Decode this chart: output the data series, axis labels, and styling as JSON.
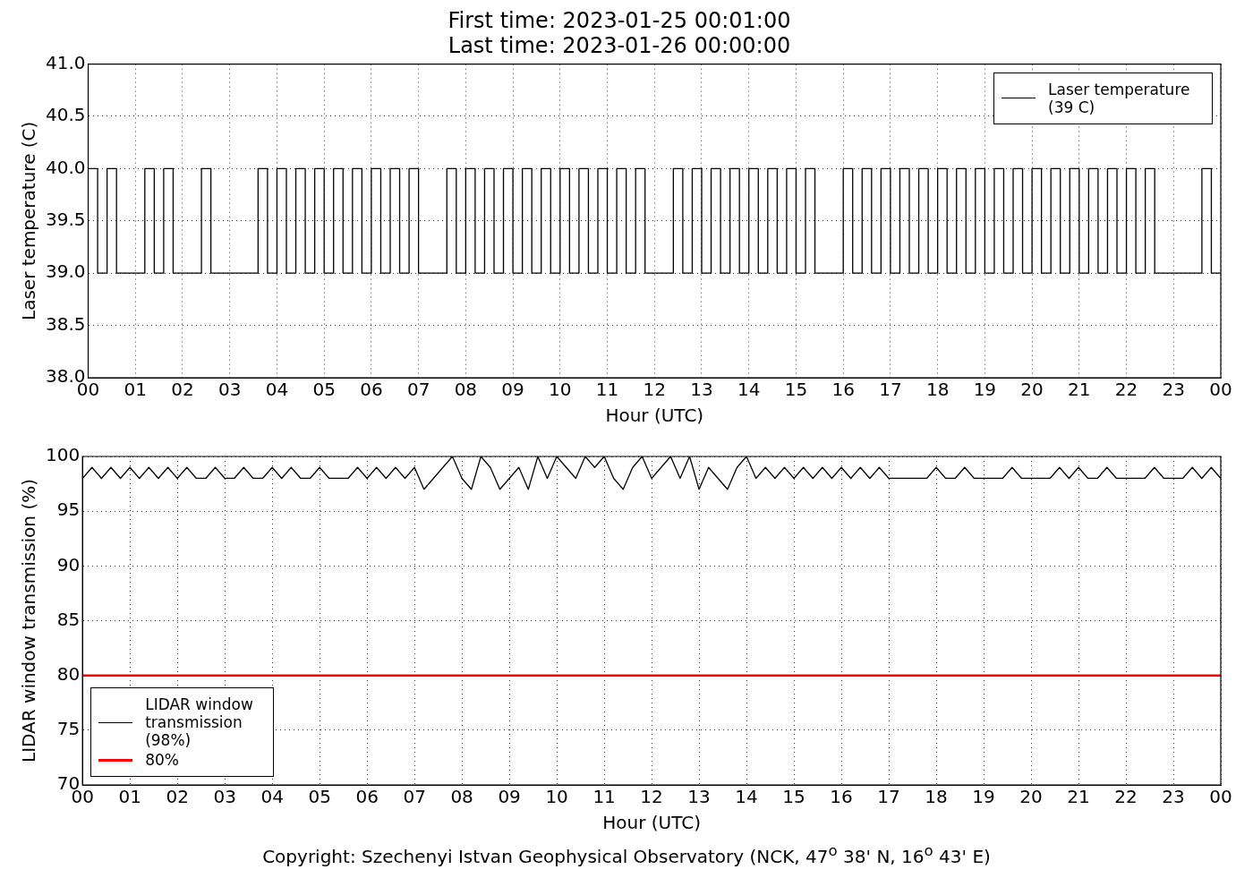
{
  "chart_data": [
    {
      "type": "step",
      "title": "First time: 2023-01-25 00:01:00",
      "subtitle": "Last time: 2023-01-26 00:00:00",
      "xlabel": "Hour (UTC)",
      "ylabel": "Laser temperature (C)",
      "x": [
        0,
        0.2,
        0.4,
        0.6,
        0.8,
        1,
        1.2,
        1.4,
        1.6,
        1.8,
        2,
        2.2,
        2.4,
        2.6,
        2.8,
        3,
        3.2,
        3.4,
        3.6,
        3.8,
        4,
        4.2,
        4.4,
        4.6,
        4.8,
        5,
        5.2,
        5.4,
        5.6,
        5.8,
        6,
        6.2,
        6.4,
        6.6,
        6.8,
        7,
        7.2,
        7.4,
        7.6,
        7.8,
        8,
        8.2,
        8.4,
        8.6,
        8.8,
        9,
        9.2,
        9.4,
        9.6,
        9.8,
        10,
        10.2,
        10.4,
        10.6,
        10.8,
        11,
        11.2,
        11.4,
        11.6,
        11.8,
        12,
        12.2,
        12.4,
        12.6,
        12.8,
        13,
        13.2,
        13.4,
        13.6,
        13.8,
        14,
        14.2,
        14.4,
        14.6,
        14.8,
        15,
        15.2,
        15.4,
        15.6,
        15.8,
        16,
        16.2,
        16.4,
        16.6,
        16.8,
        17,
        17.2,
        17.4,
        17.6,
        17.8,
        18,
        18.2,
        18.4,
        18.6,
        18.8,
        19,
        19.2,
        19.4,
        19.6,
        19.8,
        20,
        20.2,
        20.4,
        20.6,
        20.8,
        21,
        21.2,
        21.4,
        21.6,
        21.8,
        22,
        22.2,
        22.4,
        22.6,
        22.8,
        23,
        23.2,
        23.4,
        23.6,
        23.8,
        24
      ],
      "series": [
        {
          "name": "Laser temperature (39 C)",
          "color": "#000000",
          "values": [
            40,
            39,
            40,
            39,
            39,
            39,
            40,
            39,
            40,
            39,
            39,
            39,
            40,
            39,
            39,
            39,
            39,
            39,
            40,
            39,
            40,
            39,
            40,
            39,
            40,
            39,
            40,
            39,
            40,
            39,
            40,
            39,
            40,
            39,
            40,
            39,
            39,
            39,
            40,
            39,
            40,
            39,
            40,
            39,
            40,
            39,
            40,
            39,
            40,
            39,
            40,
            39,
            40,
            39,
            40,
            39,
            40,
            39,
            40,
            39,
            39,
            39,
            40,
            39,
            40,
            39,
            40,
            39,
            40,
            39,
            40,
            39,
            40,
            39,
            40,
            39,
            40,
            39,
            39,
            39,
            40,
            39,
            40,
            39,
            40,
            39,
            40,
            39,
            40,
            39,
            40,
            39,
            40,
            39,
            40,
            39,
            40,
            39,
            40,
            39,
            40,
            39,
            40,
            39,
            40,
            39,
            40,
            39,
            40,
            39,
            40,
            39,
            40,
            39,
            39,
            39,
            39,
            39,
            40,
            39,
            39
          ]
        }
      ],
      "xlim": [
        0,
        24
      ],
      "xticks": [
        {
          "value": 0,
          "label": "00"
        },
        {
          "value": 1,
          "label": "01"
        },
        {
          "value": 2,
          "label": "02"
        },
        {
          "value": 3,
          "label": "03"
        },
        {
          "value": 4,
          "label": "04"
        },
        {
          "value": 5,
          "label": "05"
        },
        {
          "value": 6,
          "label": "06"
        },
        {
          "value": 7,
          "label": "07"
        },
        {
          "value": 8,
          "label": "08"
        },
        {
          "value": 9,
          "label": "09"
        },
        {
          "value": 10,
          "label": "10"
        },
        {
          "value": 11,
          "label": "11"
        },
        {
          "value": 12,
          "label": "12"
        },
        {
          "value": 13,
          "label": "13"
        },
        {
          "value": 14,
          "label": "14"
        },
        {
          "value": 15,
          "label": "15"
        },
        {
          "value": 16,
          "label": "16"
        },
        {
          "value": 17,
          "label": "17"
        },
        {
          "value": 18,
          "label": "18"
        },
        {
          "value": 19,
          "label": "19"
        },
        {
          "value": 20,
          "label": "20"
        },
        {
          "value": 21,
          "label": "21"
        },
        {
          "value": 22,
          "label": "22"
        },
        {
          "value": 23,
          "label": "23"
        },
        {
          "value": 24,
          "label": "00"
        }
      ],
      "ylim": [
        38,
        41
      ],
      "yticks": [
        {
          "value": 38,
          "label": "38.0"
        },
        {
          "value": 38.5,
          "label": "38.5"
        },
        {
          "value": 39,
          "label": "39.0"
        },
        {
          "value": 39.5,
          "label": "39.5"
        },
        {
          "value": 40,
          "label": "40.0"
        },
        {
          "value": 40.5,
          "label": "40.5"
        },
        {
          "value": 41,
          "label": "41.0"
        }
      ],
      "grid": true,
      "legend": "top right"
    },
    {
      "type": "line",
      "xlabel": "Hour (UTC)",
      "ylabel": "LIDAR window transmission (%)",
      "x": [
        0,
        0.2,
        0.4,
        0.6,
        0.8,
        1,
        1.2,
        1.4,
        1.6,
        1.8,
        2,
        2.2,
        2.4,
        2.6,
        2.8,
        3,
        3.2,
        3.4,
        3.6,
        3.8,
        4,
        4.2,
        4.4,
        4.6,
        4.8,
        5,
        5.2,
        5.4,
        5.6,
        5.8,
        6,
        6.2,
        6.4,
        6.6,
        6.8,
        7,
        7.2,
        7.4,
        7.6,
        7.8,
        8,
        8.2,
        8.4,
        8.6,
        8.8,
        9,
        9.2,
        9.4,
        9.6,
        9.8,
        10,
        10.2,
        10.4,
        10.6,
        10.8,
        11,
        11.2,
        11.4,
        11.6,
        11.8,
        12,
        12.2,
        12.4,
        12.6,
        12.8,
        13,
        13.2,
        13.4,
        13.6,
        13.8,
        14,
        14.2,
        14.4,
        14.6,
        14.8,
        15,
        15.2,
        15.4,
        15.6,
        15.8,
        16,
        16.2,
        16.4,
        16.6,
        16.8,
        17,
        17.2,
        17.4,
        17.6,
        17.8,
        18,
        18.2,
        18.4,
        18.6,
        18.8,
        19,
        19.2,
        19.4,
        19.6,
        19.8,
        20,
        20.2,
        20.4,
        20.6,
        20.8,
        21,
        21.2,
        21.4,
        21.6,
        21.8,
        22,
        22.2,
        22.4,
        22.6,
        22.8,
        23,
        23.2,
        23.4,
        23.6,
        23.8,
        24
      ],
      "series": [
        {
          "name": "LIDAR window transmission (98%)",
          "color": "#000000",
          "values": [
            98,
            99,
            98,
            99,
            98,
            99,
            98,
            99,
            98,
            99,
            98,
            99,
            98,
            98,
            99,
            98,
            98,
            99,
            98,
            98,
            99,
            98,
            99,
            98,
            98,
            99,
            98,
            98,
            98,
            99,
            98,
            99,
            98,
            99,
            98,
            99,
            97,
            98,
            99,
            100,
            98,
            97,
            100,
            99,
            97,
            98,
            99,
            97,
            100,
            98,
            100,
            99,
            98,
            100,
            99,
            100,
            98,
            97,
            99,
            100,
            98,
            99,
            100,
            98,
            100,
            97,
            99,
            98,
            97,
            99,
            100,
            98,
            99,
            98,
            99,
            98,
            99,
            98,
            99,
            98,
            99,
            98,
            99,
            98,
            99,
            98,
            98,
            98,
            98,
            98,
            99,
            98,
            98,
            99,
            98,
            98,
            98,
            98,
            99,
            98,
            98,
            98,
            98,
            99,
            98,
            99,
            98,
            98,
            99,
            98,
            98,
            98,
            98,
            99,
            98,
            98,
            98,
            99,
            98,
            99,
            98
          ]
        }
      ],
      "ref_lines": [
        {
          "axis": "y",
          "value": 80,
          "label": "80%",
          "color": "#ff0000"
        }
      ],
      "xlim": [
        0,
        24
      ],
      "xticks": [
        {
          "value": 0,
          "label": "00"
        },
        {
          "value": 1,
          "label": "01"
        },
        {
          "value": 2,
          "label": "02"
        },
        {
          "value": 3,
          "label": "03"
        },
        {
          "value": 4,
          "label": "04"
        },
        {
          "value": 5,
          "label": "05"
        },
        {
          "value": 6,
          "label": "06"
        },
        {
          "value": 7,
          "label": "07"
        },
        {
          "value": 8,
          "label": "08"
        },
        {
          "value": 9,
          "label": "09"
        },
        {
          "value": 10,
          "label": "10"
        },
        {
          "value": 11,
          "label": "11"
        },
        {
          "value": 12,
          "label": "12"
        },
        {
          "value": 13,
          "label": "13"
        },
        {
          "value": 14,
          "label": "14"
        },
        {
          "value": 15,
          "label": "15"
        },
        {
          "value": 16,
          "label": "16"
        },
        {
          "value": 17,
          "label": "17"
        },
        {
          "value": 18,
          "label": "18"
        },
        {
          "value": 19,
          "label": "19"
        },
        {
          "value": 20,
          "label": "20"
        },
        {
          "value": 21,
          "label": "21"
        },
        {
          "value": 22,
          "label": "22"
        },
        {
          "value": 23,
          "label": "23"
        },
        {
          "value": 24,
          "label": "00"
        }
      ],
      "ylim": [
        70,
        100
      ],
      "yticks": [
        70,
        75,
        80,
        85,
        90,
        95,
        100
      ],
      "grid": true,
      "legend": "bottom left",
      "annotations": [
        "Copyright: Szechenyi Istvan Geophysical Observatory (NCK, 47$^{o}$ 38' N, 16$^{o}$ 43' E)"
      ]
    }
  ]
}
